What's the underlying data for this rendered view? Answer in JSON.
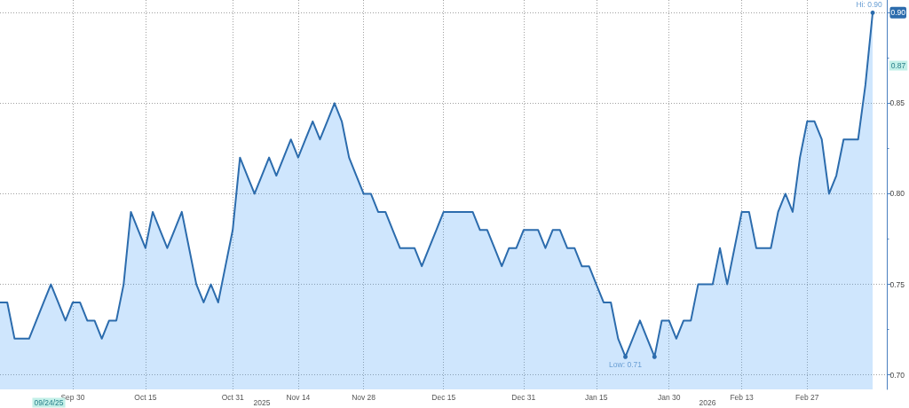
{
  "chart_data": {
    "type": "area",
    "categories": [
      null,
      null,
      null,
      null,
      null,
      null,
      null,
      null,
      null,
      null,
      "Sep 30",
      null,
      null,
      null,
      null,
      null,
      null,
      null,
      null,
      null,
      "Oct 15",
      null,
      null,
      null,
      null,
      null,
      null,
      null,
      null,
      null,
      null,
      null,
      "Oct 31",
      null,
      null,
      null,
      null,
      null,
      null,
      null,
      null,
      "Nov 14",
      null,
      null,
      null,
      null,
      null,
      null,
      null,
      null,
      "Nov 28",
      null,
      null,
      null,
      null,
      null,
      null,
      null,
      null,
      null,
      null,
      "Dec 15",
      null,
      null,
      null,
      null,
      null,
      null,
      null,
      null,
      null,
      null,
      "Dec 31",
      null,
      null,
      null,
      null,
      null,
      null,
      null,
      null,
      null,
      "Jan 15",
      null,
      null,
      null,
      null,
      null,
      null,
      null,
      null,
      null,
      "Jan 30",
      null,
      null,
      null,
      null,
      null,
      null,
      null,
      null,
      null,
      "Feb 13",
      null,
      null,
      null,
      null,
      null,
      null,
      null,
      null,
      "Feb 27",
      null,
      null,
      null,
      null,
      null,
      null,
      null,
      null,
      null,
      null,
      null
    ],
    "values": [
      0.74,
      0.74,
      0.72,
      0.72,
      0.72,
      0.73,
      0.74,
      0.75,
      0.74,
      0.73,
      0.74,
      0.74,
      0.73,
      0.73,
      0.72,
      0.73,
      0.73,
      0.75,
      0.79,
      0.78,
      0.77,
      0.79,
      0.78,
      0.77,
      0.78,
      0.79,
      0.77,
      0.75,
      0.74,
      0.75,
      0.74,
      0.76,
      0.78,
      0.82,
      0.81,
      0.8,
      0.81,
      0.82,
      0.81,
      0.82,
      0.83,
      0.82,
      0.83,
      0.84,
      0.83,
      0.84,
      0.85,
      0.84,
      0.82,
      0.81,
      0.8,
      0.8,
      0.79,
      0.79,
      0.78,
      0.77,
      0.77,
      0.77,
      0.76,
      0.77,
      0.78,
      0.79,
      0.79,
      0.79,
      0.79,
      0.79,
      0.78,
      0.78,
      0.77,
      0.76,
      0.77,
      0.77,
      0.78,
      0.78,
      0.78,
      0.77,
      0.78,
      0.78,
      0.77,
      0.77,
      0.76,
      0.76,
      0.75,
      0.74,
      0.74,
      0.72,
      0.71,
      0.72,
      0.73,
      0.72,
      0.71,
      0.73,
      0.73,
      0.72,
      0.73,
      0.73,
      0.75,
      0.75,
      0.75,
      0.77,
      0.75,
      0.77,
      0.79,
      0.79,
      0.77,
      0.77,
      0.77,
      0.79,
      0.8,
      0.79,
      0.82,
      0.84,
      0.84,
      0.83,
      0.8,
      0.81,
      0.83,
      0.83,
      0.83,
      0.86,
      0.9,
      null,
      null
    ],
    "color": "#2c6cad",
    "ylim": [
      0.692,
      0.907
    ],
    "yticks": [
      {
        "value": 0.7,
        "label": "0.70"
      },
      {
        "value": 0.725,
        "label": null
      },
      {
        "value": 0.75,
        "label": "0.75"
      },
      {
        "value": 0.775,
        "label": null
      },
      {
        "value": 0.8,
        "label": "0.80"
      },
      {
        "value": 0.825,
        "label": null
      },
      {
        "value": 0.85,
        "label": "0.85"
      },
      {
        "value": 0.875,
        "label": null
      },
      {
        "value": 0.9,
        "label": "0.90"
      }
    ],
    "annotations": [
      "2025",
      "2026",
      "09/24/25",
      "0.87",
      {
        "text": "Hi: 0.90",
        "y": 0.9
      },
      {
        "text": "Low: 0.71",
        "y": 0.71
      }
    ],
    "grid": true,
    "marker": "none",
    "line_style": "solid"
  }
}
